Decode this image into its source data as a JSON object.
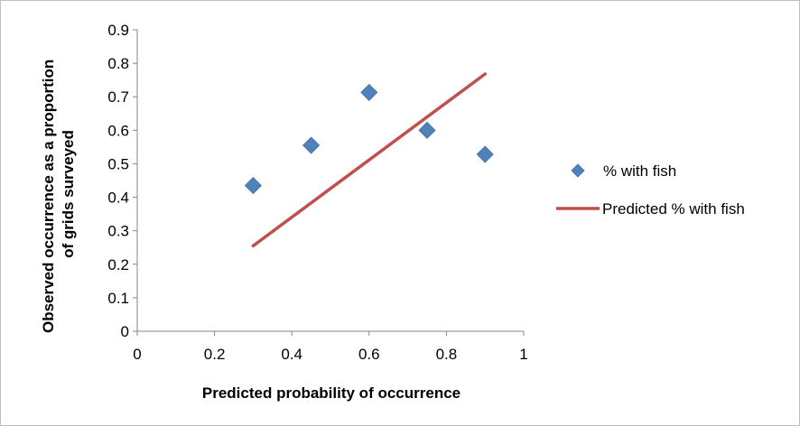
{
  "chart_data": {
    "type": "scatter",
    "title": "",
    "xlabel": "Predicted probability of occurrence",
    "ylabel_lines": [
      "Observed occurrence as a proportion",
      "of grids surveyed"
    ],
    "xlim": [
      0,
      1
    ],
    "ylim": [
      0,
      0.9
    ],
    "x_ticks": [
      0,
      0.2,
      0.4,
      0.6,
      0.8,
      1
    ],
    "x_tick_labels": [
      "0",
      "0.2",
      "0.4",
      "0.6",
      "0.8",
      "1"
    ],
    "y_ticks": [
      0,
      0.1,
      0.2,
      0.3,
      0.4,
      0.5,
      0.6,
      0.7,
      0.8,
      0.9
    ],
    "y_tick_labels": [
      "0",
      "0.1",
      "0.2",
      "0.3",
      "0.4",
      "0.5",
      "0.6",
      "0.7",
      "0.8",
      "0.9"
    ],
    "grid": false,
    "legend_position": "right",
    "series": [
      {
        "name": "% with fish",
        "kind": "scatter",
        "marker": "diamond",
        "color": "#4f81bd",
        "x": [
          0.3,
          0.45,
          0.6,
          0.75,
          0.9
        ],
        "y": [
          0.435,
          0.555,
          0.713,
          0.6,
          0.528
        ]
      },
      {
        "name": "Predicted % with fish",
        "kind": "line",
        "color": "#c0504d",
        "x": [
          0.3,
          0.9
        ],
        "y": [
          0.255,
          0.768
        ]
      }
    ]
  }
}
